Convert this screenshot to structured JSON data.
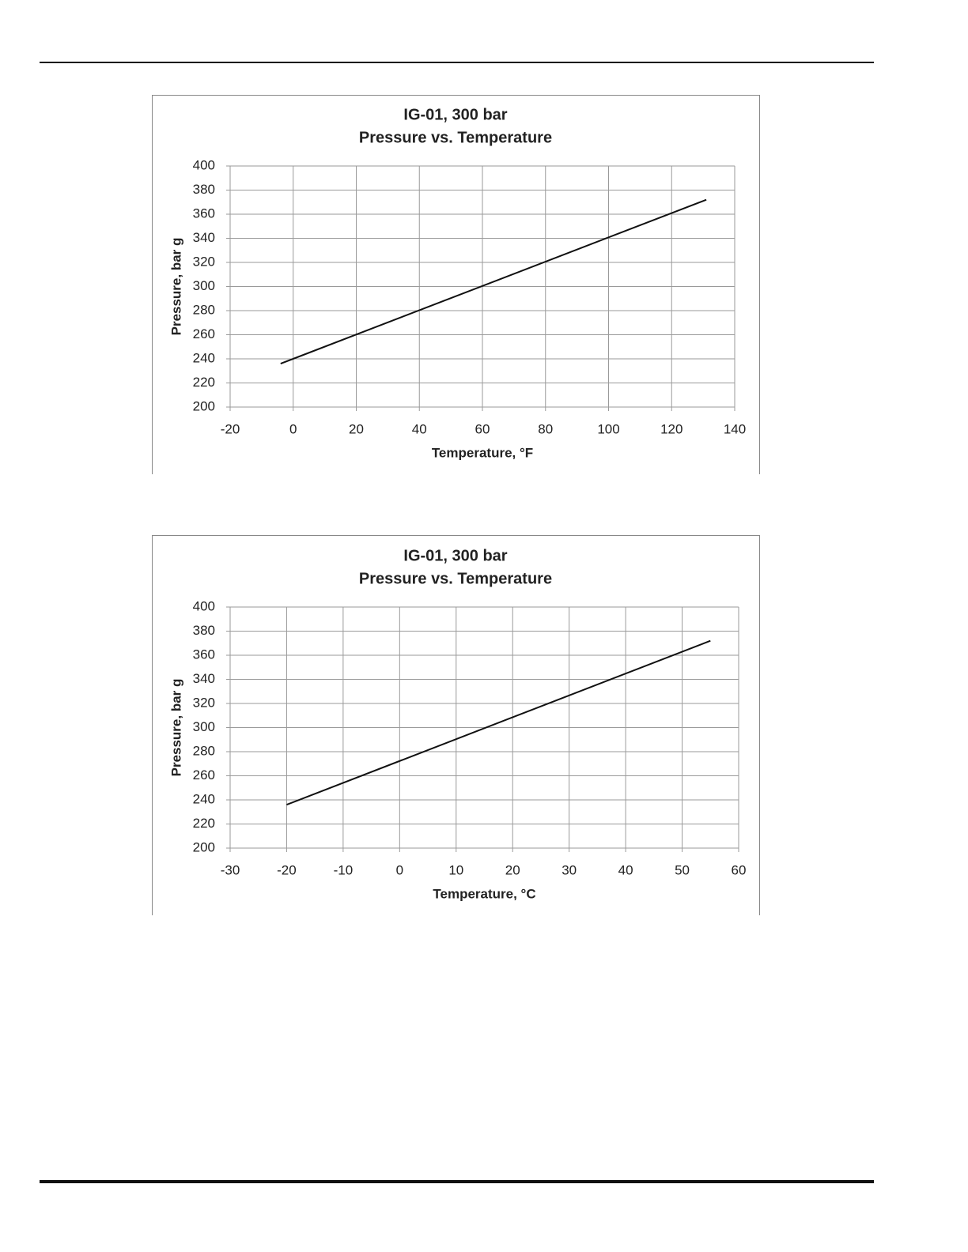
{
  "chart_data": [
    {
      "type": "line",
      "title": "IG-01, 300 bar",
      "subtitle": "Pressure vs. Temperature",
      "xlabel": "Temperature, °F",
      "ylabel": "Pressure, bar g",
      "x": [
        -4,
        131
      ],
      "values": [
        236,
        372
      ],
      "color": "#111111",
      "xlim": [
        -20,
        140
      ],
      "xticks": [
        -20,
        0,
        20,
        40,
        60,
        80,
        100,
        120,
        140
      ],
      "ylim": [
        200,
        400
      ],
      "yticks": [
        200,
        220,
        240,
        260,
        280,
        300,
        320,
        340,
        360,
        380,
        400
      ],
      "grid": true
    },
    {
      "type": "line",
      "title": "IG-01, 300 bar",
      "subtitle": "Pressure vs. Temperature",
      "xlabel": "Temperature, °C",
      "ylabel": "Pressure, bar g",
      "x": [
        -20,
        55
      ],
      "values": [
        236,
        372
      ],
      "color": "#111111",
      "xlim": [
        -30,
        60
      ],
      "xticks": [
        -30,
        -20,
        -10,
        0,
        10,
        20,
        30,
        40,
        50,
        60
      ],
      "ylim": [
        200,
        400
      ],
      "yticks": [
        200,
        220,
        240,
        260,
        280,
        300,
        320,
        340,
        360,
        380,
        400
      ],
      "grid": true
    }
  ]
}
